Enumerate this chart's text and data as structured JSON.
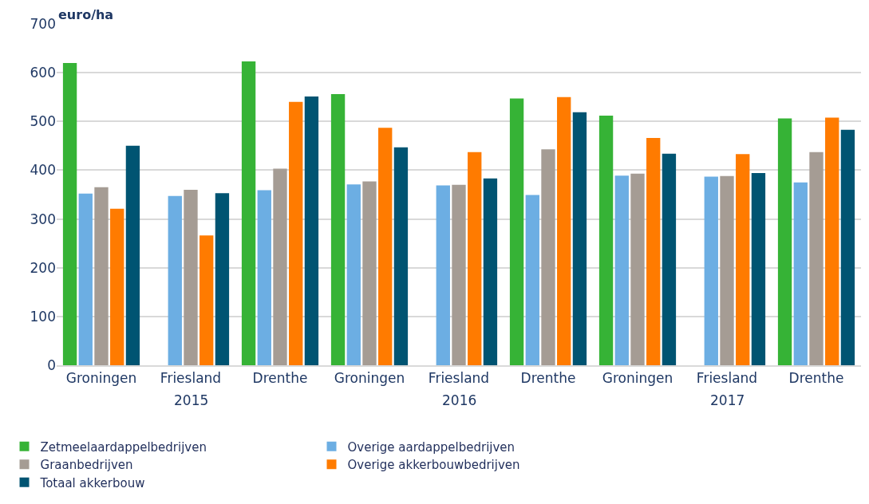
{
  "chart_data": {
    "type": "bar",
    "ylabel": "euro/ha",
    "categories": [
      "Groningen",
      "Friesland",
      "Drenthe",
      "Groningen",
      "Friesland",
      "Drenthe",
      "Groningen",
      "Friesland",
      "Drenthe"
    ],
    "annotations": [
      "2015",
      "2016",
      "2017"
    ],
    "series": [
      {
        "name": "Zetmeelaardappelbedrijven",
        "color": "#36b336",
        "values": [
          620,
          null,
          623,
          556,
          null,
          547,
          512,
          null,
          506
        ]
      },
      {
        "name": "Overige aardappelbedrijven",
        "color": "#6caee3",
        "values": [
          352,
          347,
          359,
          371,
          369,
          349,
          389,
          387,
          375
        ]
      },
      {
        "name": "Graanbedrijven",
        "color": "#a59c94",
        "values": [
          365,
          360,
          403,
          377,
          370,
          443,
          393,
          388,
          437
        ]
      },
      {
        "name": "Overige akkerbouwbedrijven",
        "color": "#ff7b00",
        "values": [
          321,
          266,
          540,
          487,
          437,
          550,
          466,
          433,
          508
        ]
      },
      {
        "name": "Totaal akkerbouw",
        "color": "#005472",
        "values": [
          450,
          353,
          551,
          447,
          383,
          519,
          434,
          394,
          483
        ]
      }
    ],
    "ylim": [
      0,
      700
    ],
    "yticks": [
      0,
      100,
      200,
      300,
      400,
      500,
      600,
      700
    ],
    "grid": "y",
    "legend": "bottom"
  }
}
